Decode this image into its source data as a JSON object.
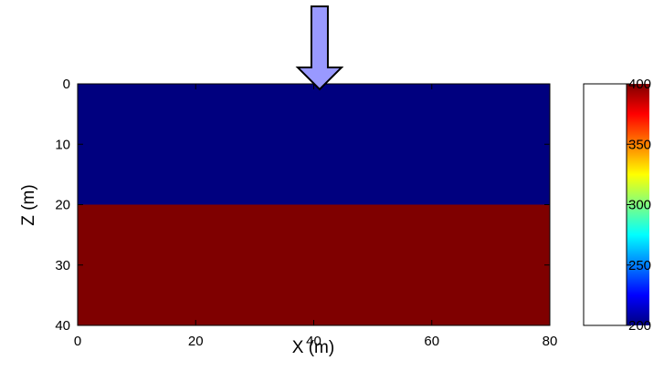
{
  "chart_data": [
    {
      "type": "heatmap",
      "title": "",
      "xlabel": "X (m)",
      "ylabel": "Z (m)",
      "xlim": [
        0,
        80
      ],
      "ylim": [
        0,
        40
      ],
      "y_axis_direction": "downward",
      "xticks": [
        "0",
        "20",
        "40",
        "60",
        "80"
      ],
      "yticks": [
        "0",
        "10",
        "20",
        "30",
        "40"
      ],
      "grid": false,
      "layers": [
        {
          "z_top": 0,
          "z_bottom": 20,
          "x_start": 0,
          "x_end": 80,
          "value": 200,
          "color": "#00007f"
        },
        {
          "z_top": 20,
          "z_bottom": 40,
          "x_start": 0,
          "x_end": 80,
          "value": 400,
          "color": "#7f0000"
        }
      ],
      "source_marker": {
        "shape": "down-arrow",
        "x": 41,
        "color": "#9999ff"
      }
    },
    {
      "type": "heatmap",
      "title": "",
      "colormap": "jet",
      "clim": [
        200,
        400
      ],
      "ticks": [
        "200",
        "250",
        "300",
        "350",
        "400"
      ],
      "tick_values": [
        200,
        250,
        300,
        350,
        400
      ]
    }
  ]
}
